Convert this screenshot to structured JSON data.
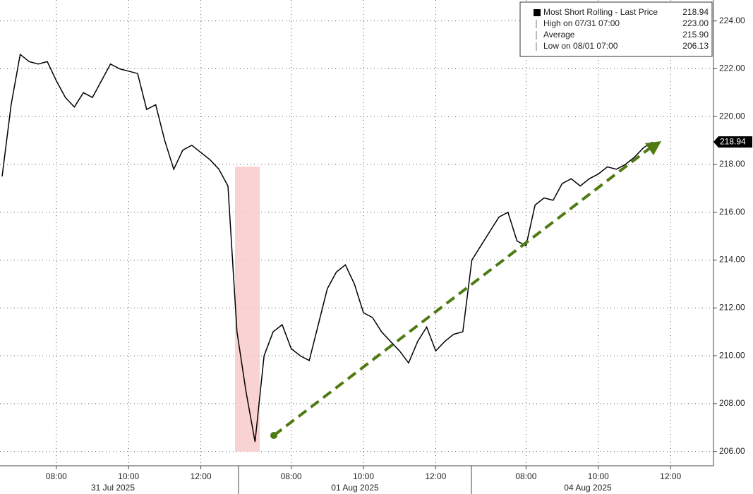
{
  "chart_data": {
    "type": "line",
    "categories": [
      null,
      null,
      null,
      null,
      null,
      null,
      "08:00",
      null,
      null,
      null,
      null,
      null,
      null,
      null,
      "10:00",
      null,
      null,
      null,
      null,
      null,
      null,
      null,
      "12:00",
      null,
      null,
      null,
      null,
      null,
      null,
      null,
      null,
      null,
      "08:00",
      null,
      null,
      null,
      null,
      null,
      null,
      null,
      "10:00",
      null,
      null,
      null,
      null,
      null,
      null,
      null,
      "12:00",
      null,
      null,
      null,
      null,
      null,
      null,
      null,
      null,
      null,
      "08:00",
      null,
      null,
      null,
      null,
      null,
      null,
      null,
      "10:00",
      null,
      null,
      null,
      null,
      null,
      null,
      null,
      "12:00"
    ],
    "x_groups": [
      "31 Jul 2025",
      "01 Aug 2025",
      "04 Aug 2025"
    ],
    "series": [
      {
        "name": "Most Short Rolling - Last Price",
        "color": "#000000",
        "values": [
          217.5,
          220.5,
          222.6,
          222.3,
          222.2,
          222.3,
          221.5,
          220.8,
          220.4,
          221.0,
          220.8,
          221.5,
          222.2,
          222.0,
          221.9,
          221.8,
          220.3,
          220.5,
          219.0,
          217.8,
          218.6,
          218.8,
          218.5,
          218.2,
          217.8,
          217.1,
          211.0,
          208.5,
          206.4,
          210.0,
          211.0,
          211.3,
          210.3,
          210.0,
          209.8,
          211.3,
          212.8,
          213.5,
          213.8,
          213.0,
          211.8,
          211.6,
          211.0,
          210.6,
          210.2,
          209.7,
          210.6,
          211.2,
          210.2,
          210.6,
          210.9,
          211.0,
          214.0,
          214.6,
          215.2,
          215.8,
          216.0,
          214.8,
          214.6,
          216.3,
          216.6,
          216.5,
          217.2,
          217.4,
          217.1,
          217.4,
          217.6,
          217.9,
          217.8,
          218.0,
          218.3,
          218.7,
          218.94,
          null,
          null
        ]
      }
    ],
    "legend": [
      {
        "name": "Most Short Rolling - Last Price",
        "value": 218.94,
        "label": "218.94"
      },
      {
        "name": "High on 07/31 07:00",
        "value": 223,
        "label": "223.00"
      },
      {
        "name": "Average",
        "value": 215.9,
        "label": "215.90"
      },
      {
        "name": "Low on 08/01 07:00",
        "value": 206.13,
        "label": "206.13"
      }
    ],
    "last_price": {
      "value": 218.94,
      "label": "218.94"
    },
    "ylim": [
      205.4,
      224.3
    ],
    "yticks": [
      {
        "value": 206,
        "label": "206.00"
      },
      {
        "value": 208,
        "label": "208.00"
      },
      {
        "value": 210,
        "label": "210.00"
      },
      {
        "value": 212,
        "label": "212.00"
      },
      {
        "value": 214,
        "label": "214.00"
      },
      {
        "value": 216,
        "label": "216.00"
      },
      {
        "value": 218,
        "label": "218.00"
      },
      {
        "value": 220,
        "label": "220.00"
      },
      {
        "value": 222,
        "label": "222.00"
      },
      {
        "value": 224,
        "label": "224.00"
      }
    ],
    "grid": true,
    "legend_position": "upper right"
  }
}
